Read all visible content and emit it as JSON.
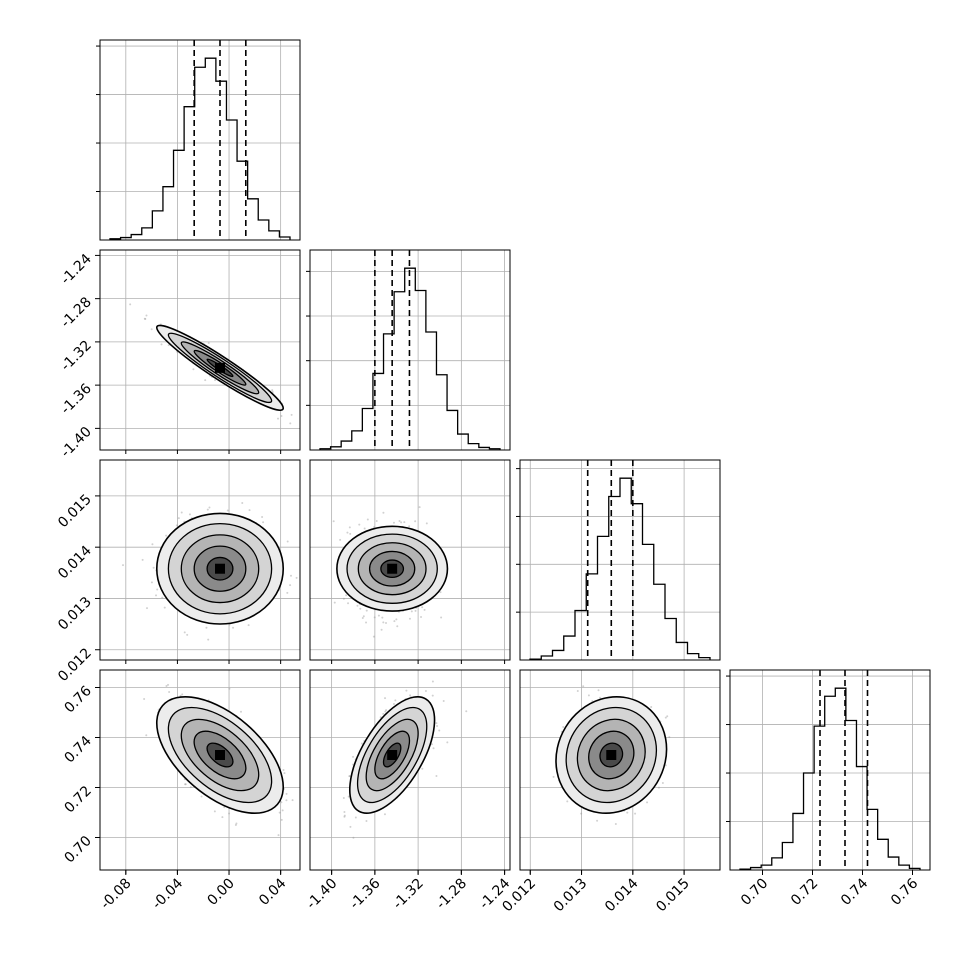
{
  "chart_data": {
    "type": "corner",
    "title": "",
    "grid": true,
    "colors": {
      "hist": "#000000",
      "points": "#9a9a9a",
      "grid": "#b0b0b0",
      "frame": "#000000"
    },
    "parameters": [
      {
        "index": 0,
        "range": [
          -0.1,
          0.055
        ],
        "ticks": [
          "-0.08",
          "-0.04",
          "0.00",
          "0.04"
        ],
        "tick_values": [
          -0.08,
          -0.04,
          0.0,
          0.04
        ],
        "quantiles": [
          -0.027,
          -0.007,
          0.013
        ],
        "hist_counts": [
          2,
          4,
          9,
          20,
          48,
          88,
          148,
          220,
          285,
          300,
          262,
          198,
          130,
          68,
          33,
          15,
          5
        ]
      },
      {
        "index": 1,
        "range": [
          -1.42,
          -1.235
        ],
        "ticks": [
          "-1.40",
          "-1.36",
          "-1.32",
          "-1.28",
          "-1.24"
        ],
        "tick_values": [
          -1.4,
          -1.36,
          -1.32,
          -1.28,
          -1.24
        ],
        "quantiles": [
          -1.36,
          -1.344,
          -1.328
        ],
        "hist_counts": [
          2,
          5,
          14,
          30,
          65,
          120,
          182,
          248,
          285,
          250,
          185,
          118,
          62,
          25,
          10,
          4,
          2
        ]
      },
      {
        "index": 2,
        "range": [
          0.0118,
          0.0157
        ],
        "ticks": [
          "0.012",
          "0.013",
          "0.014",
          "0.015"
        ],
        "tick_values": [
          0.012,
          0.013,
          0.014,
          0.015
        ],
        "quantiles": [
          0.01312,
          0.01358,
          0.014
        ],
        "hist_counts": [
          1,
          5,
          12,
          30,
          62,
          108,
          155,
          205,
          228,
          196,
          145,
          95,
          52,
          22,
          8,
          3
        ]
      },
      {
        "index": 3,
        "range": [
          0.687,
          0.767
        ],
        "ticks": [
          "0.70",
          "0.72",
          "0.74",
          "0.76"
        ],
        "tick_values": [
          0.7,
          0.72,
          0.74,
          0.76
        ],
        "quantiles": [
          0.723,
          0.733,
          0.742
        ],
        "hist_counts": [
          1,
          3,
          6,
          15,
          34,
          70,
          120,
          178,
          215,
          225,
          185,
          128,
          75,
          38,
          16,
          6,
          2
        ]
      }
    ],
    "pairs": [
      {
        "x": 0,
        "y": 1,
        "correlation": -0.95
      },
      {
        "x": 0,
        "y": 2,
        "correlation": 0.0
      },
      {
        "x": 1,
        "y": 2,
        "correlation": 0.0
      },
      {
        "x": 0,
        "y": 3,
        "correlation": -0.55
      },
      {
        "x": 1,
        "y": 3,
        "correlation": 0.6
      },
      {
        "x": 2,
        "y": 3,
        "correlation": 0.1
      }
    ]
  }
}
